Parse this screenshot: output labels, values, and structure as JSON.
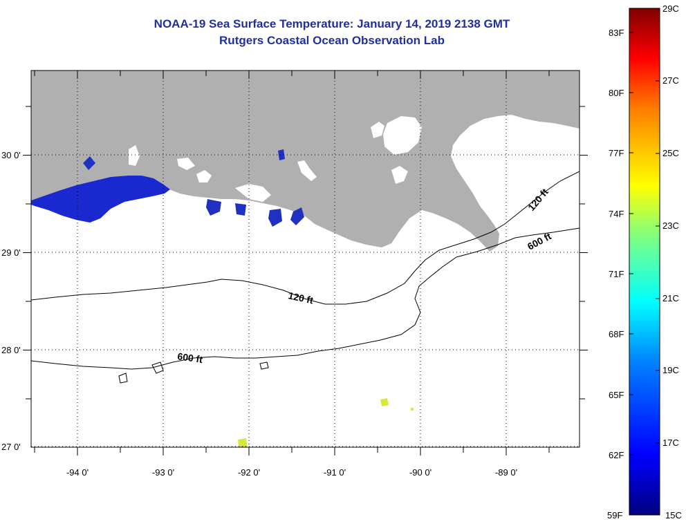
{
  "title": "NOAA-19 Sea Surface Temperature:  January 14, 2019 2138 GMT",
  "subtitle": "Rutgers Coastal Ocean Observation Lab",
  "map": {
    "lon_ticks": [
      "-94 0'",
      "-93 0'",
      "-92 0'",
      "-91 0'",
      "-90 0'",
      "-89 0'"
    ],
    "lat_ticks": [
      "30 0'",
      "29 0'",
      "28 0'",
      "27 0'"
    ],
    "contour_labels": [
      "120 ft",
      "600 ft",
      "120 ft",
      "600 ft"
    ],
    "colors": {
      "land": "#b0b0b0",
      "cloud": "#ffffff",
      "cold_water": "#1a28d0",
      "warm_water": "#d8e838"
    }
  },
  "colorbar": {
    "fahrenheit": [
      "83F",
      "80F",
      "77F",
      "74F",
      "71F",
      "68F",
      "65F",
      "62F",
      "59F"
    ],
    "celsius": [
      "29C",
      "27C",
      "25C",
      "23C",
      "21C",
      "19C",
      "17C",
      "15C"
    ],
    "min_c": 15,
    "max_c": 29
  }
}
